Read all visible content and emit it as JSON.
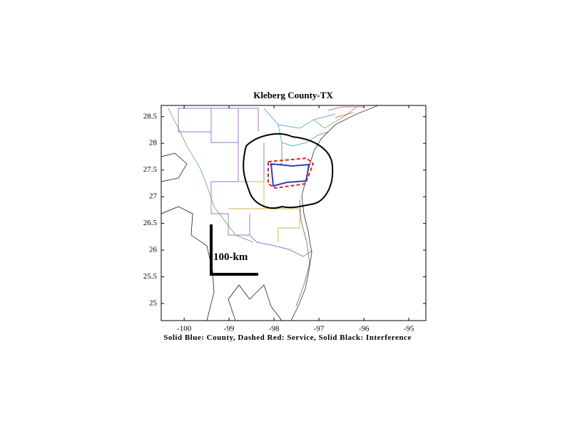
{
  "chart_data": {
    "type": "map",
    "title": "Kleberg County-TX",
    "xlabel": "Solid Blue: County, Dashed Red: Service, Solid Black: Interference",
    "scale_label": "100-km",
    "xlim": [
      -100.51,
      -94.62
    ],
    "ylim": [
      24.68,
      28.71
    ],
    "xticks": [
      -100,
      -99,
      -98,
      -97,
      -96,
      -95
    ],
    "yticks": [
      25,
      25.5,
      26,
      26.5,
      27,
      27.5,
      28,
      28.5
    ]
  }
}
